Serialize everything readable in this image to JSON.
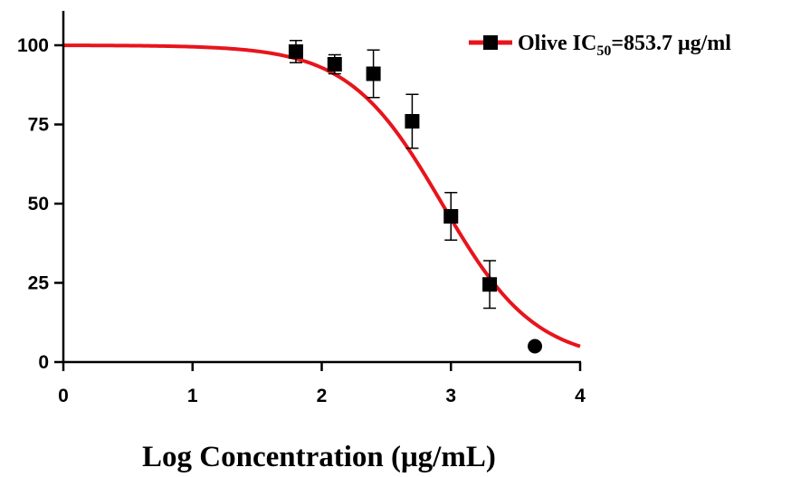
{
  "chart_data": {
    "type": "scatter",
    "title": "",
    "xlabel": "Log Concentration (μg/mL)",
    "ylabel": "",
    "xlim": [
      0,
      4
    ],
    "ylim": [
      0,
      110
    ],
    "x_ticks": [
      0,
      1,
      2,
      3,
      4
    ],
    "x_tick_labels": [
      "0",
      "1",
      "2",
      "3",
      "4"
    ],
    "y_ticks": [
      0,
      25,
      50,
      75,
      100
    ],
    "y_tick_labels": [
      "0",
      "25",
      "50",
      "75",
      "100"
    ],
    "grid": false,
    "legend_position": "top-right",
    "series": [
      {
        "name": "Olive IC50=853.7 μg/ml",
        "color": "#e8141c",
        "marker": "square",
        "marker_color": "#000000",
        "x": [
          1.8,
          2.1,
          2.4,
          2.7,
          3.0,
          3.3
        ],
        "y": [
          98,
          94,
          91,
          76,
          46,
          24.5
        ],
        "error": [
          3.5,
          3,
          7.5,
          8.5,
          7.5,
          7.5
        ]
      }
    ],
    "extra_points": [
      {
        "x": 3.65,
        "y": 5,
        "marker": "circle",
        "color": "#000000"
      }
    ],
    "fit_curve": {
      "model": "sigmoid",
      "top": 100,
      "bottom": 0,
      "log_ic50": 2.9313,
      "hill_slope": -1.2,
      "color": "#e8141c"
    },
    "legend": {
      "label_prefix": "Olive IC",
      "label_subscript": "50",
      "label_suffix": "=853.7 μg/ml"
    }
  }
}
